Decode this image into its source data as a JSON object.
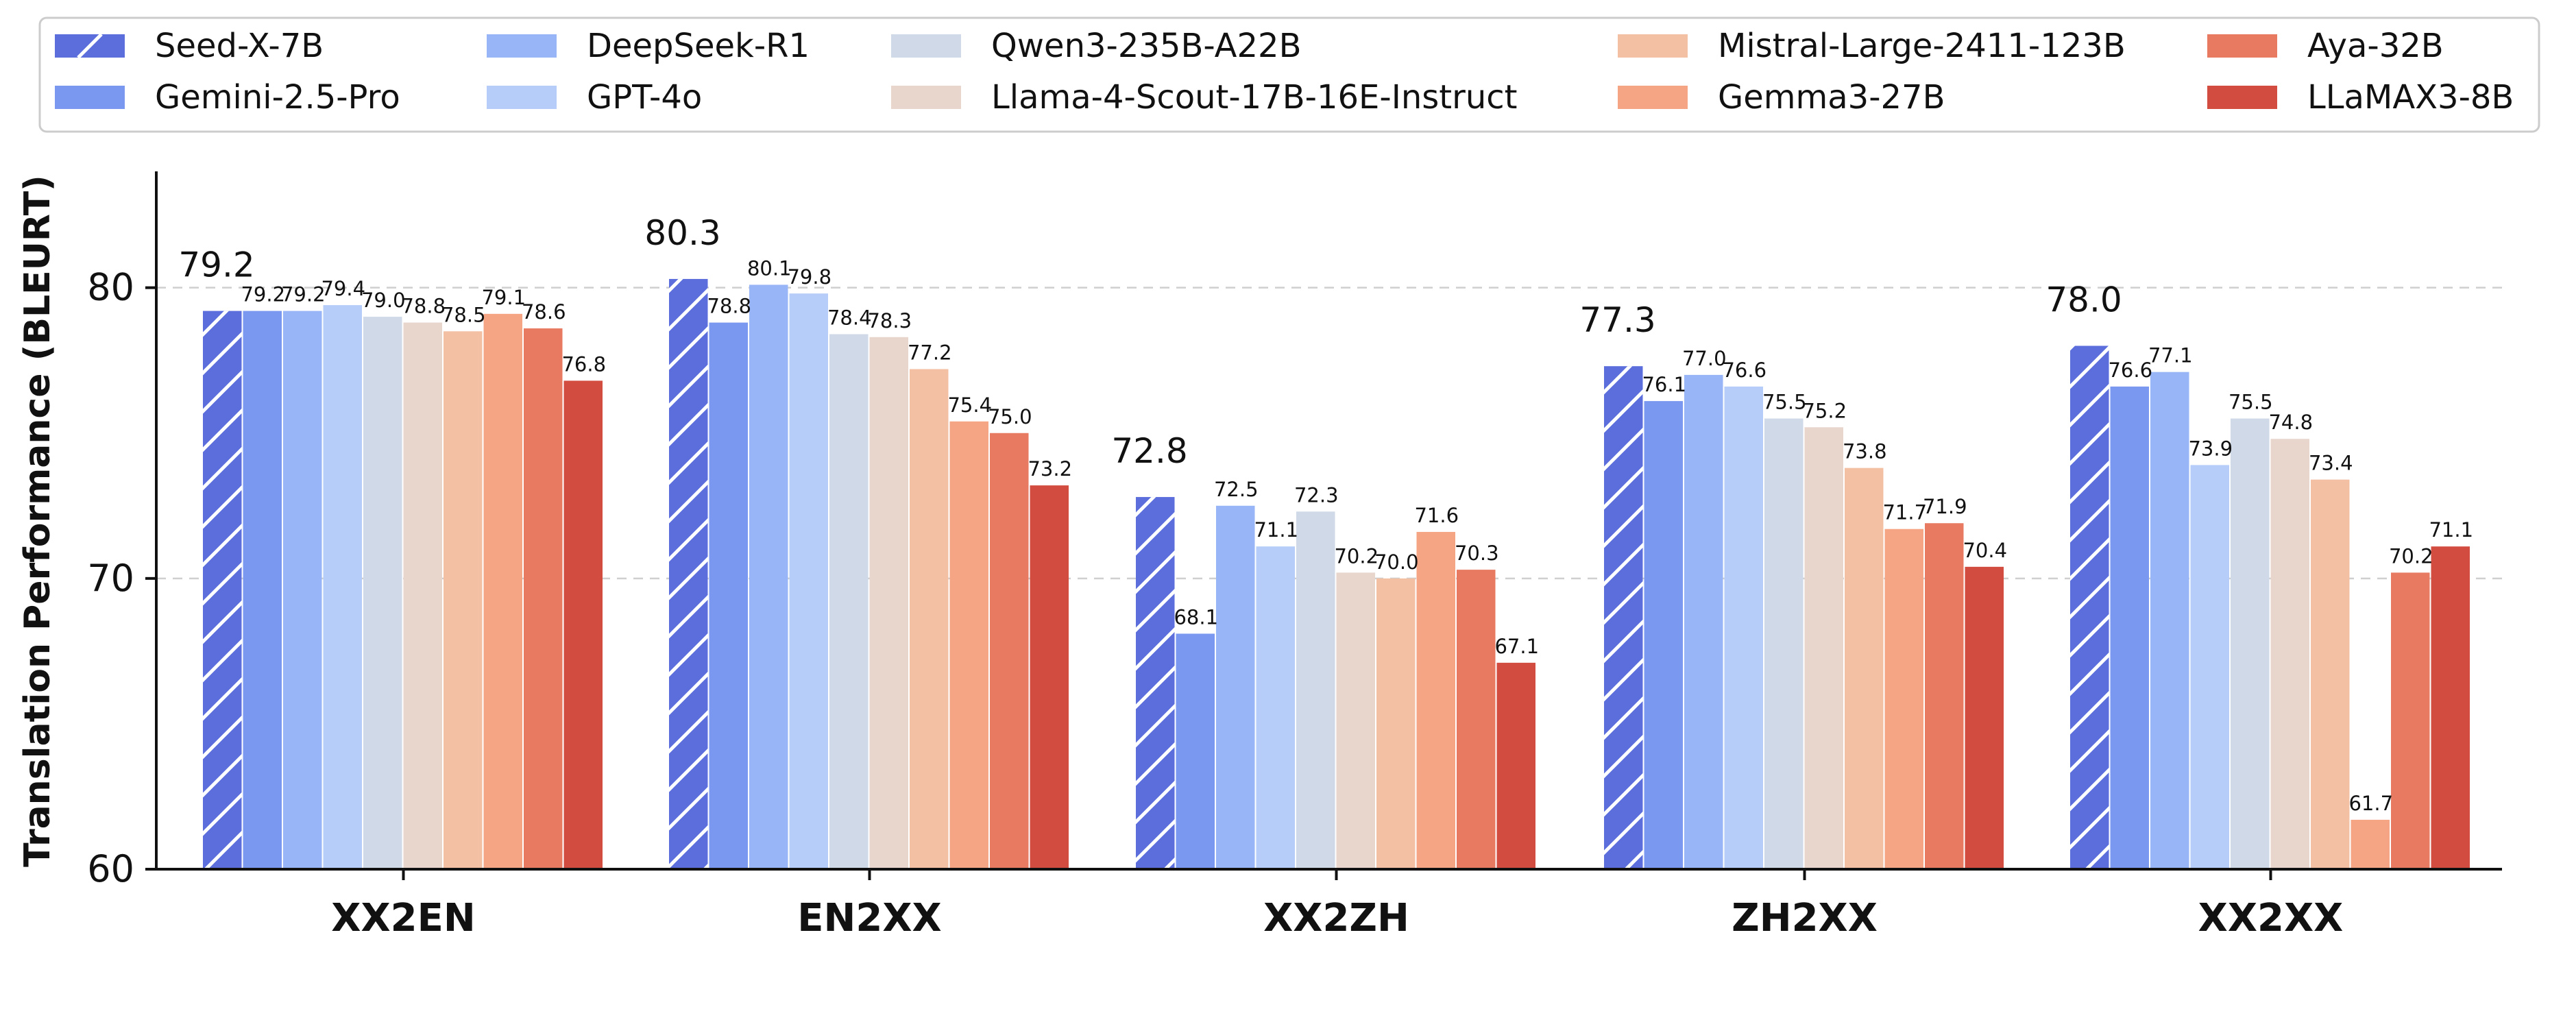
{
  "chart_data": {
    "type": "bar",
    "ylabel": "Translation Performance (BLEURT)",
    "xlabel": "",
    "ylim": [
      60,
      84
    ],
    "yticks": [
      60,
      70,
      80
    ],
    "grid": "horizontal dashed at 70 and 80",
    "legend_position": "top",
    "categories": [
      "XX2EN",
      "EN2XX",
      "XX2ZH",
      "ZH2XX",
      "XX2XX"
    ],
    "series": [
      {
        "name": "Seed-X-7B",
        "color": "#5B6EDC",
        "hatch": true,
        "values": [
          79.2,
          80.3,
          72.8,
          77.3,
          78.0
        ]
      },
      {
        "name": "Gemini-2.5-Pro",
        "color": "#7B98F0",
        "values": [
          79.2,
          78.8,
          68.1,
          76.1,
          76.6
        ]
      },
      {
        "name": "DeepSeek-R1",
        "color": "#97B5F7",
        "values": [
          79.2,
          80.1,
          72.5,
          77.0,
          77.1
        ]
      },
      {
        "name": "GPT-4o",
        "color": "#B6CDF9",
        "values": [
          79.4,
          79.8,
          71.1,
          76.6,
          73.9
        ]
      },
      {
        "name": "Qwen3-235B-A22B",
        "color": "#CFD9E8",
        "values": [
          79.0,
          78.4,
          72.3,
          75.5,
          75.5
        ]
      },
      {
        "name": "Llama-4-Scout-17B-16E-Instruct",
        "color": "#E8D5CC",
        "values": [
          78.8,
          78.3,
          70.2,
          75.2,
          74.8
        ]
      },
      {
        "name": "Mistral-Large-2411-123B",
        "color": "#F4C0A4",
        "values": [
          78.5,
          77.2,
          70.0,
          73.8,
          73.4
        ]
      },
      {
        "name": "Gemma3-27B",
        "color": "#F5A584",
        "values": [
          79.1,
          75.4,
          71.6,
          71.7,
          61.7
        ]
      },
      {
        "name": "Aya-32B",
        "color": "#E87A62",
        "values": [
          78.6,
          75.0,
          70.3,
          71.9,
          70.2
        ]
      },
      {
        "name": "LLaMAX3-8B",
        "color": "#D24D40",
        "values": [
          76.8,
          73.2,
          67.1,
          70.4,
          71.1
        ]
      }
    ]
  }
}
